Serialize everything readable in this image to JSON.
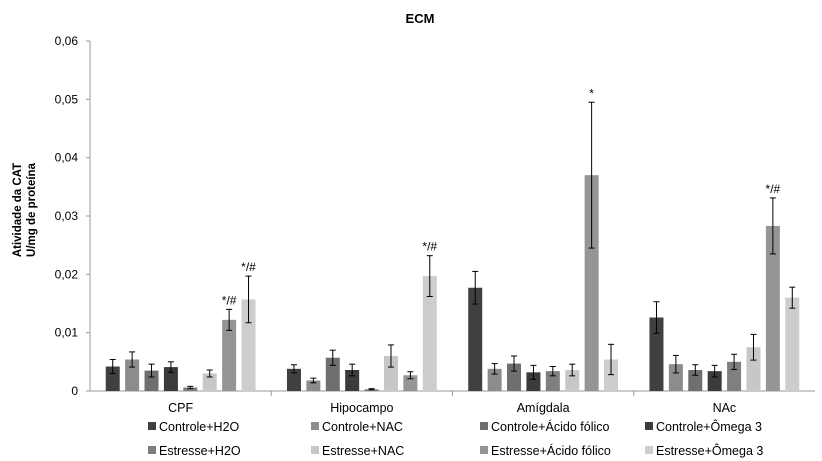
{
  "chart_data": {
    "type": "bar",
    "title": "ECM",
    "ylabel_line1": "Atividade da CAT",
    "ylabel_line2": "U/mg de proteína",
    "xlabel": "",
    "ylim": [
      0,
      0.06
    ],
    "yticks": [
      "0",
      "0,01",
      "0,02",
      "0,03",
      "0,04",
      "0,05",
      "0,06"
    ],
    "grid": false,
    "legend_position": "bottom",
    "categories": [
      "CPF",
      "Hipocampo",
      "Amígdala",
      "NAc"
    ],
    "series": [
      {
        "name": "Controle+H2O",
        "color": "#404040",
        "values": [
          0.0042,
          0.0038,
          0.0177,
          0.0126
        ],
        "errors": [
          0.0012,
          0.0007,
          0.0028,
          0.0027
        ],
        "annotations": [
          "",
          "",
          "",
          ""
        ]
      },
      {
        "name": "Controle+NAC",
        "color": "#8c8c8c",
        "values": [
          0.0054,
          0.0018,
          0.0038,
          0.0046
        ],
        "errors": [
          0.0013,
          0.0004,
          0.0009,
          0.0015
        ],
        "annotations": [
          "",
          "",
          "",
          ""
        ]
      },
      {
        "name": "Controle+Ácido fólico",
        "color": "#6f6f6f",
        "values": [
          0.0035,
          0.0057,
          0.0047,
          0.0036
        ],
        "errors": [
          0.0011,
          0.0013,
          0.0013,
          0.0009
        ],
        "annotations": [
          "",
          "",
          "",
          ""
        ]
      },
      {
        "name": "Controle+Ômega 3",
        "color": "#3b3b3b",
        "values": [
          0.0041,
          0.0036,
          0.0032,
          0.0034
        ],
        "errors": [
          0.0009,
          0.001,
          0.0012,
          0.001
        ],
        "annotations": [
          "",
          "",
          "",
          ""
        ]
      },
      {
        "name": "Estresse+H2O",
        "color": "#7f7f7f",
        "values": [
          0.0006,
          0.0003,
          0.0034,
          0.005
        ],
        "errors": [
          0.0002,
          0.0001,
          0.0008,
          0.0013
        ],
        "annotations": [
          "",
          "",
          "",
          ""
        ]
      },
      {
        "name": "Estresse+NAC",
        "color": "#c7c7c7",
        "values": [
          0.003,
          0.006,
          0.0036,
          0.0075
        ],
        "errors": [
          0.0006,
          0.0019,
          0.001,
          0.0022
        ],
        "annotations": [
          "",
          "",
          "",
          ""
        ]
      },
      {
        "name": "Estresse+Ácido fólico",
        "color": "#959595",
        "values": [
          0.0122,
          0.0027,
          0.037,
          0.0283
        ],
        "errors": [
          0.0018,
          0.0006,
          0.0125,
          0.0048
        ],
        "annotations": [
          "*/#",
          "",
          "*",
          "*/#"
        ]
      },
      {
        "name": "Estresse+Ômega 3",
        "color": "#cdcdcd",
        "values": [
          0.0157,
          0.0197,
          0.0054,
          0.016
        ],
        "errors": [
          0.004,
          0.0035,
          0.0026,
          0.0018
        ],
        "annotations": [
          "*/#",
          "*/#",
          "",
          ""
        ]
      }
    ]
  }
}
